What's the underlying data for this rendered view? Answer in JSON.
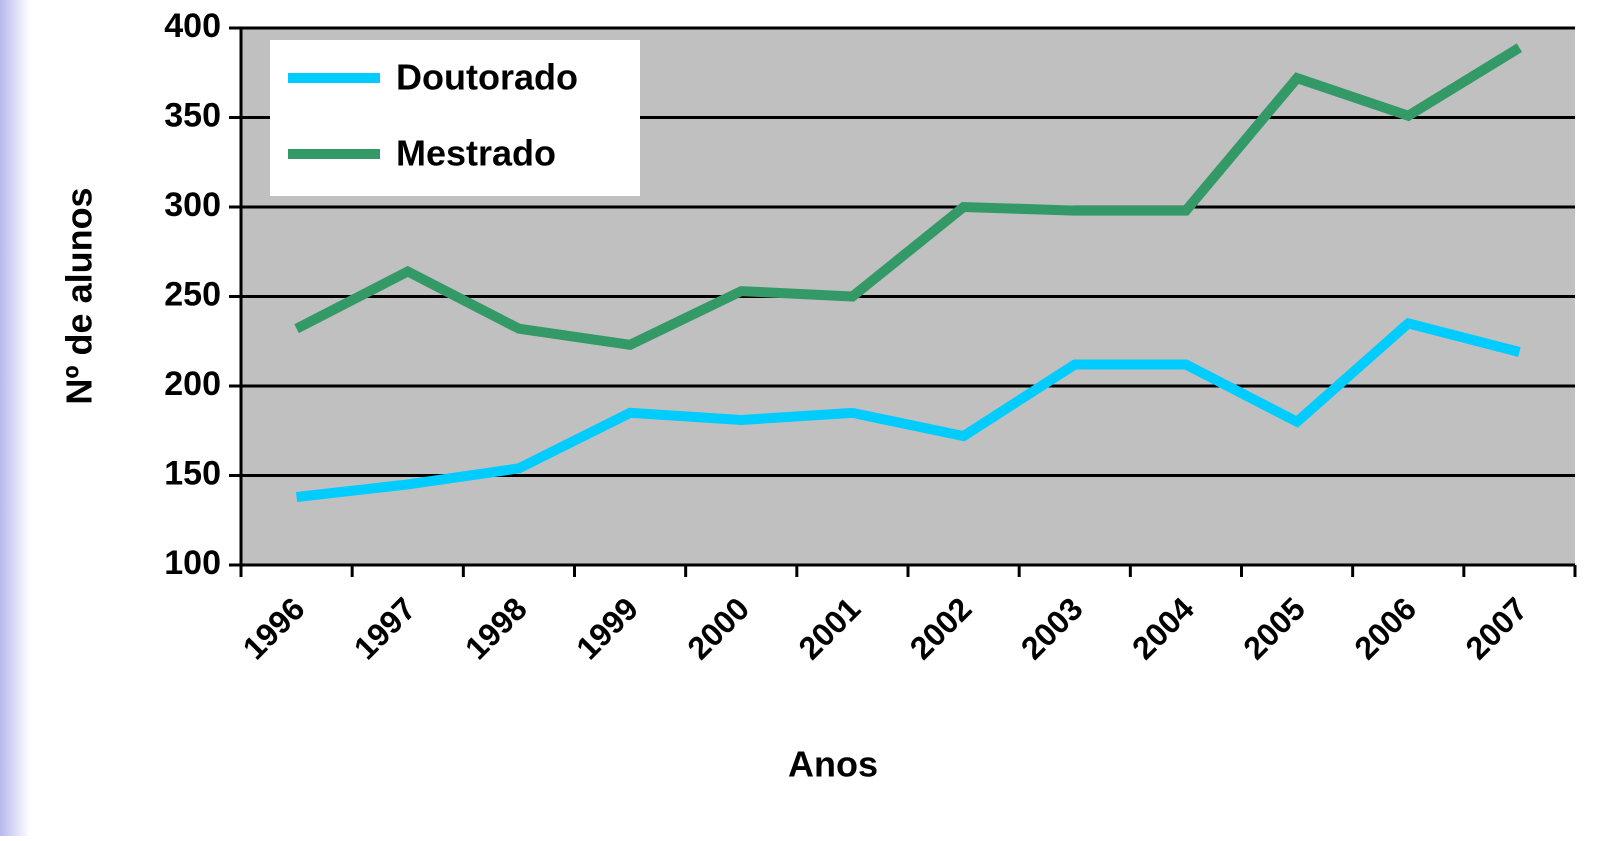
{
  "chart_data": {
    "type": "line",
    "xlabel": "Anos",
    "ylabel": "Nº de alunos",
    "categories": [
      "1996",
      "1997",
      "1998",
      "1999",
      "2000",
      "2001",
      "2002",
      "2003",
      "2004",
      "2005",
      "2006",
      "2007"
    ],
    "series": [
      {
        "name": "Doutorado",
        "color": "#00ccff",
        "values": [
          138,
          145,
          154,
          185,
          181,
          185,
          172,
          212,
          212,
          180,
          235,
          219
        ]
      },
      {
        "name": "Mestrado",
        "color": "#339966",
        "values": [
          232,
          264,
          232,
          223,
          253,
          250,
          300,
          298,
          298,
          372,
          351,
          389
        ]
      }
    ],
    "ylim": [
      100,
      400
    ],
    "yticks": [
      100,
      150,
      200,
      250,
      300,
      350,
      400
    ],
    "grid": true,
    "legend": "upper left"
  }
}
